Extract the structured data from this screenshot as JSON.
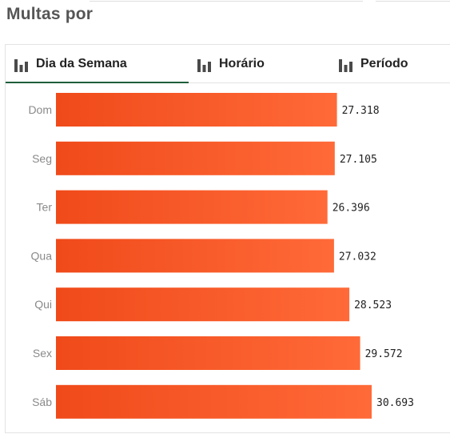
{
  "page": {
    "title": "Multas por"
  },
  "tabs": [
    {
      "label": "Dia da Semana",
      "icon": "bar-chart-icon",
      "active": true
    },
    {
      "label": "Horário",
      "icon": "bar-chart-icon",
      "active": false
    },
    {
      "label": "Período",
      "icon": "bar-chart-icon",
      "active": false
    }
  ],
  "colors": {
    "bar_light": "#ff6a38",
    "bar_dark": "#f04a1a",
    "tab_active_underline": "#1f5e3a",
    "icon": "#4a4a4a"
  },
  "chart_data": {
    "type": "bar",
    "orientation": "horizontal",
    "categories": [
      "Dom",
      "Seg",
      "Ter",
      "Qua",
      "Qui",
      "Sex",
      "Sáb"
    ],
    "values": [
      27318,
      27105,
      26396,
      27032,
      28523,
      29572,
      30693
    ],
    "value_labels": [
      "27.318",
      "27.105",
      "26.396",
      "27.032",
      "28.523",
      "29.572",
      "30.693"
    ],
    "xlim": [
      0,
      30693
    ],
    "grid": false,
    "legend": "none"
  }
}
